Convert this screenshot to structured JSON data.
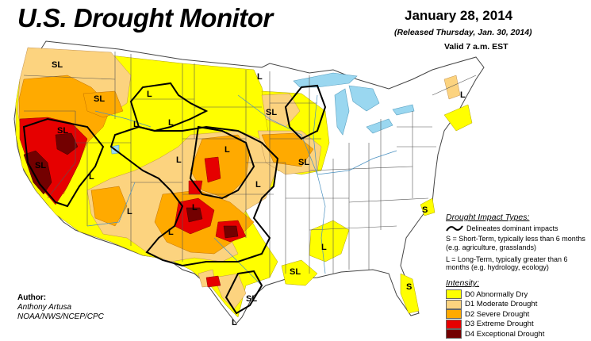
{
  "header": {
    "title": "U.S. Drought Monitor",
    "date": "January 28, 2014",
    "released": "(Released Thursday, Jan. 30, 2014)",
    "valid": "Valid 7 a.m. EST"
  },
  "impact_types": {
    "heading": "Drought Impact Types:",
    "line_label": "Delineates dominant impacts",
    "short_term": "S = Short-Term, typically less than 6 months (e.g. agriculture, grasslands)",
    "long_term": "L = Long-Term, typically greater than 6 months (e.g. hydrology, ecology)"
  },
  "intensity": {
    "heading": "Intensity:",
    "items": [
      {
        "label": "D0 Abnormally Dry",
        "color": "#ffff00"
      },
      {
        "label": "D1 Moderate Drought",
        "color": "#fcd37f"
      },
      {
        "label": "D2 Severe Drought",
        "color": "#ffaa00"
      },
      {
        "label": "D3 Extreme Drought",
        "color": "#e60000"
      },
      {
        "label": "D4 Exceptional Drought",
        "color": "#730000"
      }
    ]
  },
  "author": {
    "heading": "Author:",
    "name": "Anthony Artusa",
    "org": "NOAA/NWS/NCEP/CPC"
  },
  "map_labels": {
    "sl": "SL",
    "l": "L",
    "s": "S"
  },
  "colors": {
    "water": "#9ad7f0",
    "state_border": "#555555",
    "impact_line": "#000000"
  }
}
